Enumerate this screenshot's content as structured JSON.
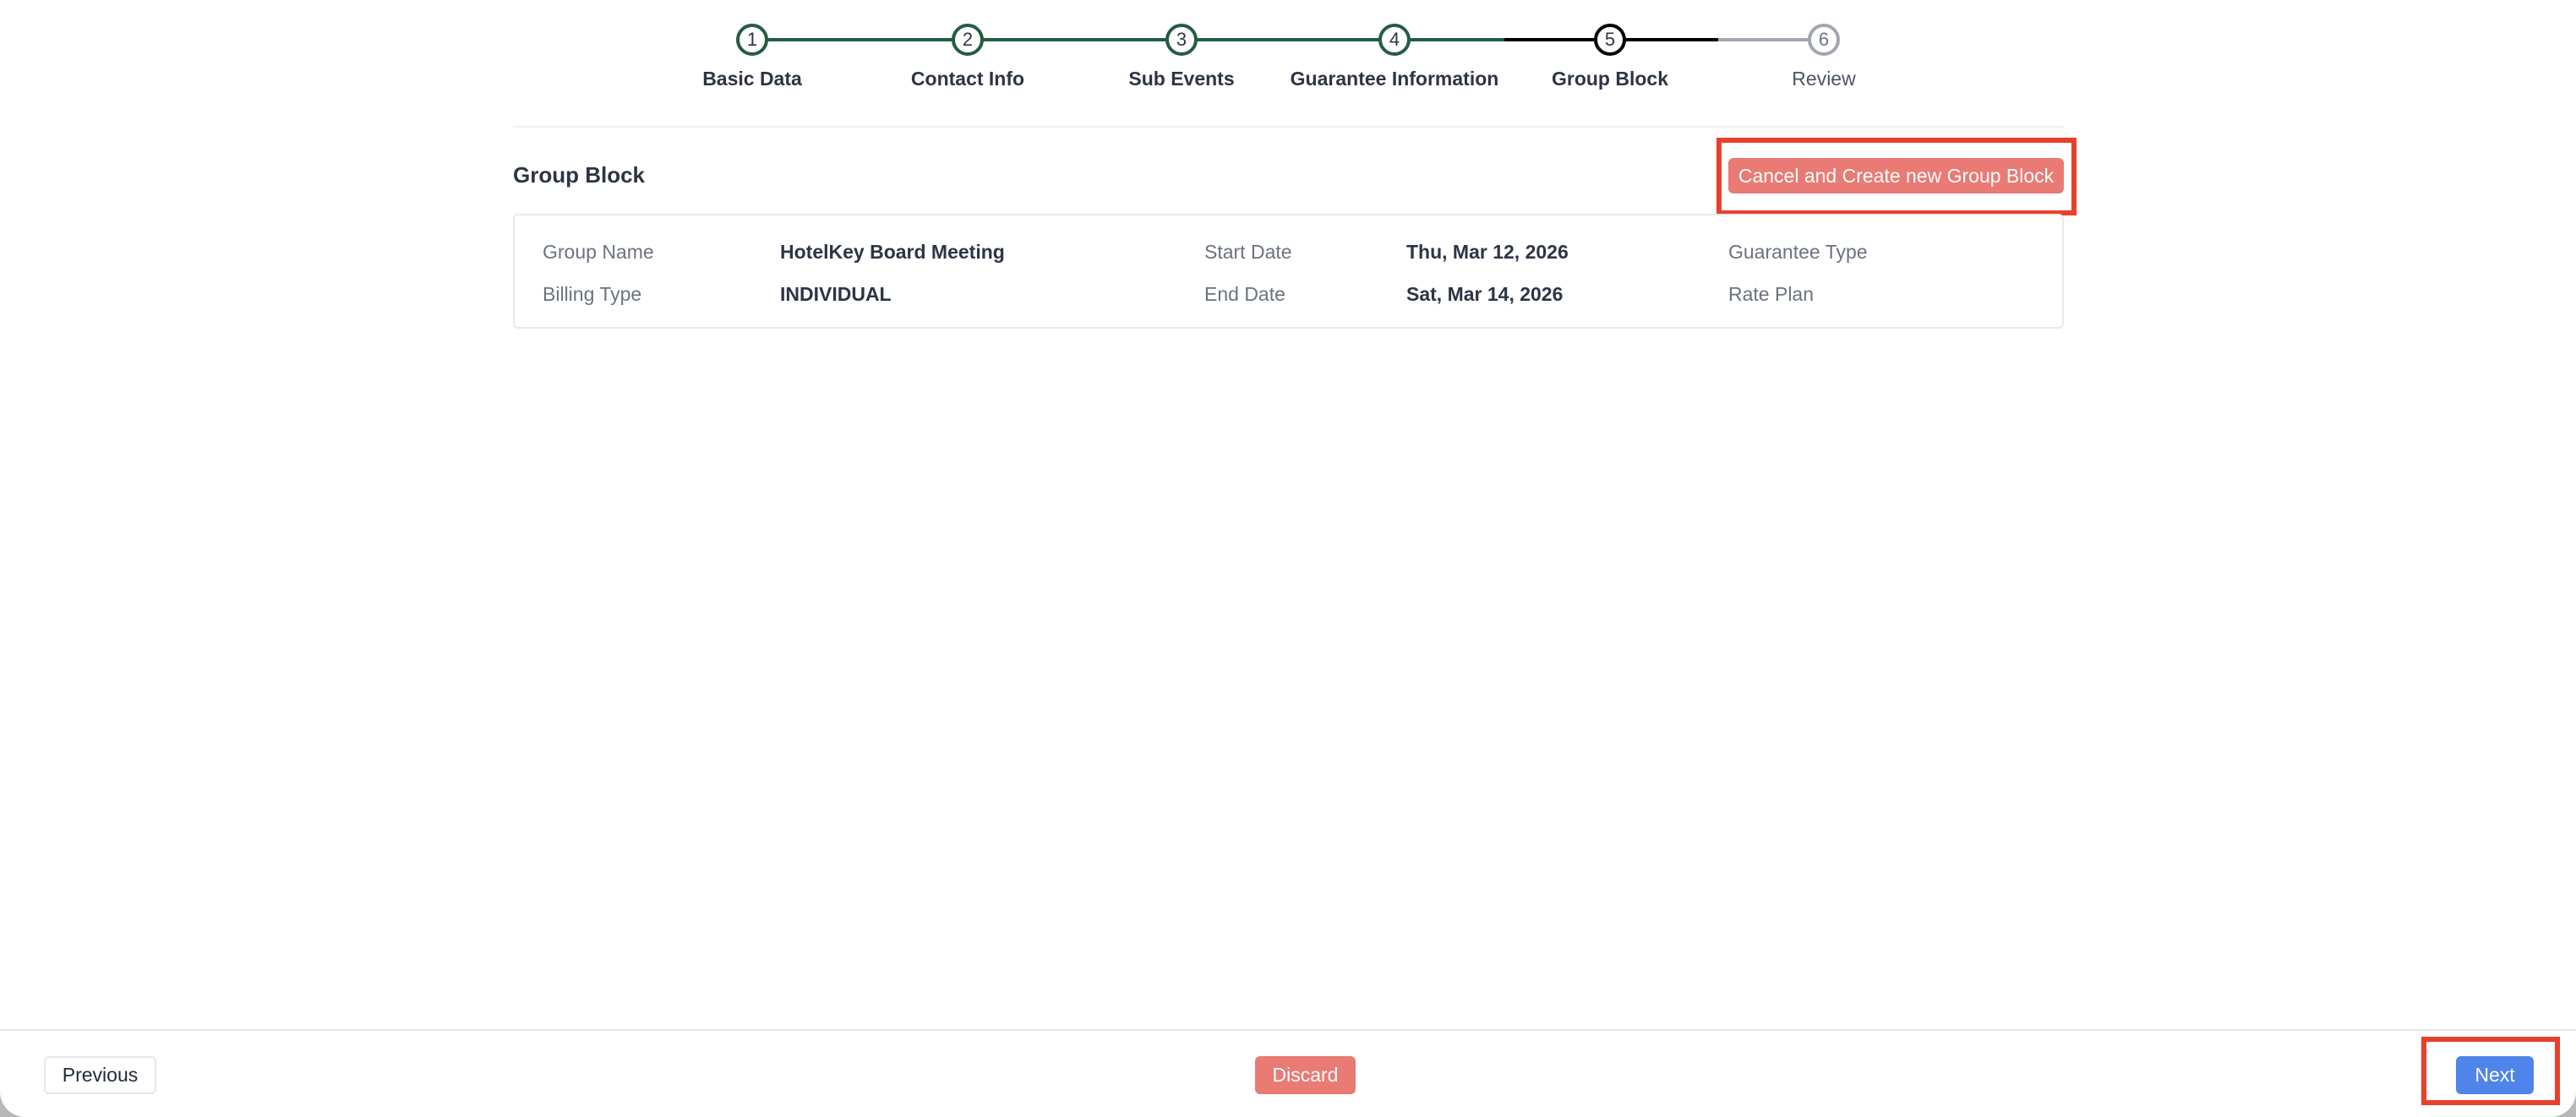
{
  "stepper": {
    "steps": [
      {
        "number": "1",
        "label": "Basic Data",
        "state": "completed"
      },
      {
        "number": "2",
        "label": "Contact Info",
        "state": "completed"
      },
      {
        "number": "3",
        "label": "Sub Events",
        "state": "completed"
      },
      {
        "number": "4",
        "label": "Guarantee Information",
        "state": "completed"
      },
      {
        "number": "5",
        "label": "Group Block",
        "state": "current"
      },
      {
        "number": "6",
        "label": "Review",
        "state": "upcoming"
      }
    ],
    "colors": {
      "completed": "#245c43",
      "current": "#000000",
      "upcoming": "#a3a6b0"
    }
  },
  "section": {
    "title": "Group Block",
    "cancel_create_label": "Cancel and Create new Group Block"
  },
  "details": {
    "group_name_label": "Group Name",
    "group_name": "HotelKey Board Meeting",
    "billing_type_label": "Billing Type",
    "billing_type": "INDIVIDUAL",
    "start_date_label": "Start Date",
    "start_date": "Thu, Mar 12, 2026",
    "end_date_label": "End Date",
    "end_date": "Sat, Mar 14, 2026",
    "guarantee_type_label": "Guarantee Type",
    "rate_plan_label": "Rate Plan"
  },
  "footer": {
    "previous_label": "Previous",
    "discard_label": "Discard",
    "next_label": "Next"
  },
  "colors": {
    "danger": "#e97a74",
    "primary": "#4f85ea",
    "highlight": "#e8412a"
  }
}
